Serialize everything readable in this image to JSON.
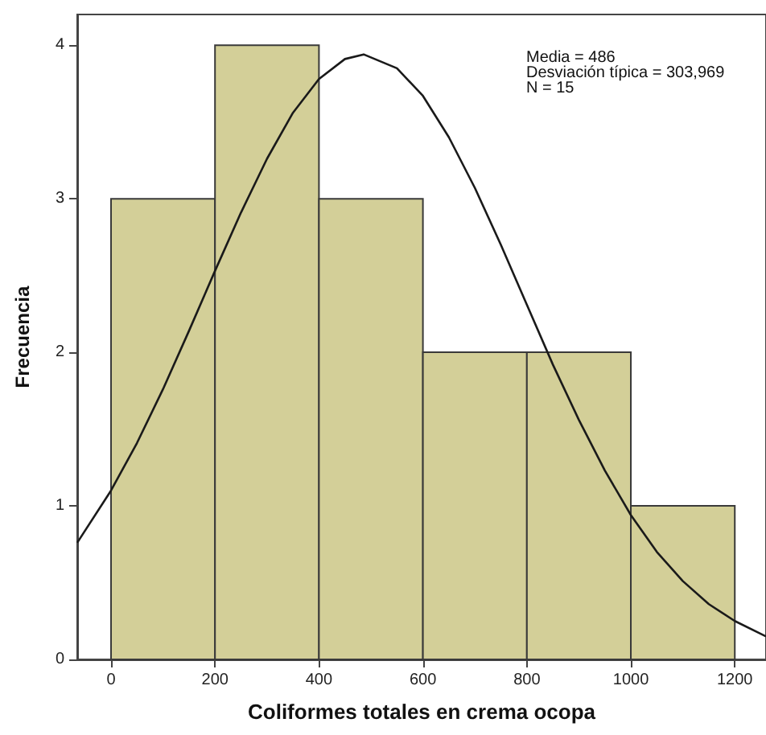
{
  "chart_data": {
    "type": "histogram",
    "xlabel": "Coliformes totales en crema ocopa",
    "ylabel": "Frecuencia",
    "bins": [
      0,
      200,
      400,
      600,
      800,
      1000,
      1200
    ],
    "values": [
      3,
      4,
      3,
      2,
      2,
      1
    ],
    "color": "#d3cf98",
    "series": [
      {
        "type": "line",
        "color": "#1a1a1a",
        "x": [
          -65,
          0,
          50,
          100,
          150,
          200,
          250,
          300,
          350,
          400,
          450,
          486,
          550,
          600,
          650,
          700,
          750,
          800,
          850,
          900,
          950,
          1000,
          1050,
          1100,
          1150,
          1200,
          1260
        ],
        "values": [
          0.76,
          1.1,
          1.41,
          1.76,
          2.14,
          2.53,
          2.91,
          3.26,
          3.56,
          3.78,
          3.91,
          3.94,
          3.85,
          3.67,
          3.4,
          3.07,
          2.7,
          2.31,
          1.92,
          1.56,
          1.23,
          0.94,
          0.7,
          0.51,
          0.36,
          0.25,
          0.15
        ]
      }
    ],
    "xlim": [
      -65,
      1260
    ],
    "ylim": [
      0,
      4.2
    ],
    "xticks": [
      0,
      200,
      400,
      600,
      800,
      1000,
      1200
    ],
    "yticks": [
      0,
      1,
      2,
      3,
      4
    ],
    "grid": false,
    "marker": "none",
    "line_style": "solid",
    "annotations": [
      "Media = 486",
      "Desviación típica = 303,969",
      "N = 15"
    ]
  }
}
